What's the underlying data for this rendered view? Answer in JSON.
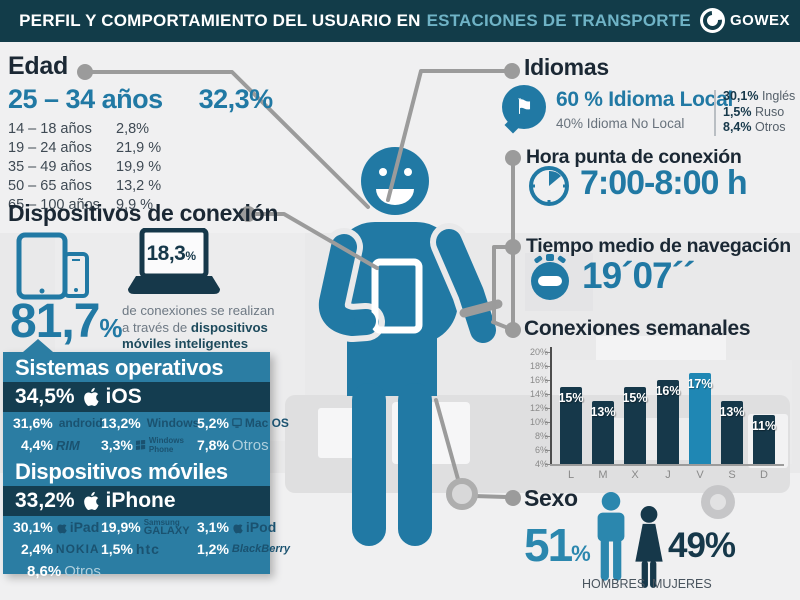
{
  "header": {
    "title_main": "PERFIL Y COMPORTAMIENTO DEL USUARIO EN",
    "title_accent": "ESTACIONES DE TRANSPORTE",
    "brand": "GOWEX"
  },
  "edad": {
    "title": "Edad",
    "highlight_label": "25 – 34 años",
    "highlight_value": "32,3%",
    "rows": [
      {
        "label": "14 – 18 años",
        "value": "2,8%"
      },
      {
        "label": "19 – 24 años",
        "value": "21,9 %"
      },
      {
        "label": "35 – 49 años",
        "value": "19,9 %"
      },
      {
        "label": "50 – 65 años",
        "value": "13,2 %"
      },
      {
        "label": "65 – 100 años",
        "value": "9,9 %"
      }
    ]
  },
  "idiomas": {
    "title": "Idiomas",
    "local_value": "60 %",
    "local_label": "Idioma Local",
    "nonlocal": "40% Idioma No Local",
    "others": [
      {
        "value": "30,1%",
        "label": "Inglés"
      },
      {
        "value": "1,5%",
        "label": "Ruso"
      },
      {
        "value": "8,4%",
        "label": "Otros"
      }
    ]
  },
  "hora": {
    "title": "Hora punta de conexión",
    "value": "7:00-8:00 h"
  },
  "tiempo": {
    "title": "Tiempo medio de navegación",
    "value": "19´07´´"
  },
  "chart_data": {
    "type": "bar",
    "title": "Conexiones semanales",
    "categories": [
      "L",
      "M",
      "X",
      "J",
      "V",
      "S",
      "D"
    ],
    "values": [
      15,
      13,
      15,
      16,
      17,
      13,
      11
    ],
    "value_labels": [
      "15%",
      "13%",
      "15%",
      "16%",
      "17%",
      "13%",
      "11%"
    ],
    "highlight_index": 4,
    "xlabel": "",
    "ylabel": "",
    "ylim": [
      4,
      20
    ],
    "ytick_labels": [
      "20%",
      "18%",
      "16%",
      "14%",
      "12%",
      "10%",
      "8%",
      "6%",
      "4%"
    ],
    "bar_color": "#16384a",
    "highlight_color": "#1f87b4",
    "grid": false,
    "legend": "none"
  },
  "dispositivos": {
    "title": "Dispositivos de conexión",
    "laptop_value": "18,3",
    "laptop_unit": "%",
    "mobile_value": "81,7",
    "mobile_unit": "%",
    "desc_line1": "de conexiones se realizan",
    "desc_pre2": "a través de ",
    "desc_bold2": "dispositivos",
    "desc_bold3": "móviles inteligentes"
  },
  "sistemas": {
    "title": "Sistemas operativos",
    "highlight_value": "34,5%",
    "highlight_label": "iOS",
    "rows": [
      {
        "value": "31,6%",
        "label": "android"
      },
      {
        "value": "13,2%",
        "label": "Windows"
      },
      {
        "value": "5,2%",
        "label": "Mac OS"
      },
      {
        "value": "4,4%",
        "label": "RIM"
      },
      {
        "value": "3,3%",
        "label_top": "Windows",
        "label": "Phone"
      },
      {
        "value": "7,8%",
        "label": "Otros"
      }
    ]
  },
  "moviles": {
    "title": "Dispositivos móviles",
    "highlight_value": "33,2%",
    "highlight_label": "iPhone",
    "rows": [
      {
        "value": "30,1%",
        "label": "iPad"
      },
      {
        "value": "19,9%",
        "label_top": "Samsung",
        "label": "GALAXY"
      },
      {
        "value": "3,1%",
        "label": "iPod"
      },
      {
        "value": "2,4%",
        "label": "NOKIA"
      },
      {
        "value": "1,5%",
        "label": "htc"
      },
      {
        "value": "1,2%",
        "label": "BlackBerry"
      },
      {
        "value": "8,6%",
        "label": "Otros"
      }
    ]
  },
  "sexo": {
    "title": "Sexo",
    "male_value": "51",
    "male_unit": "%",
    "male_label": "HOMBRES",
    "female_value": "49%",
    "female_label": "MUJERES"
  },
  "colors": {
    "accent_blue": "#2179a4",
    "dark_navy": "#16384a",
    "panel_blue": "#2b7da3",
    "bar_highlight": "#1f87b4",
    "header_bg": "#123c49",
    "header_accent": "#6fb3c6",
    "connector_gray": "#9b9b9b"
  }
}
